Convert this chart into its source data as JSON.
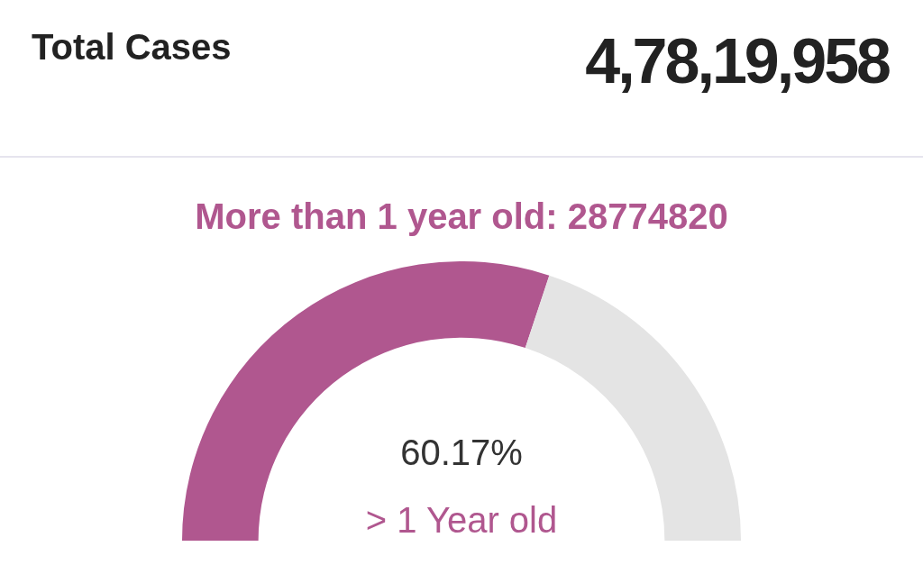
{
  "chart_data": {
    "type": "donut",
    "title": "Total Cases",
    "subtitle": "More than 1 year old: 28774820",
    "annotations": [
      "4,78,19,958"
    ],
    "categories": [
      "> 1 Year old",
      null
    ],
    "values": [
      60.17,
      39.83
    ],
    "value_labels": [
      "60.17%",
      null
    ],
    "colors": [
      "#b0578f",
      "#e4e4e4"
    ],
    "legend": false
  }
}
